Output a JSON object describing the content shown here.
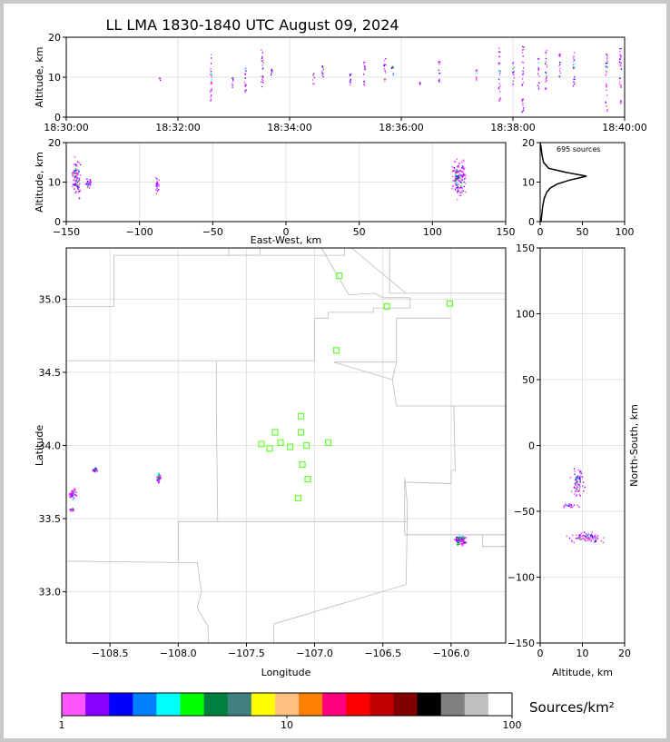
{
  "title": "LL LMA 1830-1840 UTC August 09, 2024",
  "colors": {
    "source_magenta": "#ff33ff",
    "source_violet": "#8000ff",
    "source_blue": "#0000ff",
    "source_cyan": "#00ffff",
    "source_green": "#00c000",
    "station": "#66ff33",
    "county_lines": "#bbbbbb"
  },
  "chart_data": [
    {
      "id": "time_altitude",
      "type": "scatter",
      "ylabel": "Altitude, km",
      "xlim": [
        "18:30:00",
        "18:40:00"
      ],
      "ylim": [
        0,
        20
      ],
      "x_ticks": [
        "18:30:00",
        "18:32:00",
        "18:34:00",
        "18:36:00",
        "18:38:00",
        "18:40:00"
      ],
      "y_ticks": [
        "0",
        "10",
        "20"
      ],
      "grid": true,
      "source_columns": [
        {
          "time": "18:31:40",
          "alt_min": 9,
          "alt_max": 10
        },
        {
          "time": "18:32:35",
          "alt_min": 3,
          "alt_max": 16
        },
        {
          "time": "18:32:58",
          "alt_min": 7,
          "alt_max": 11
        },
        {
          "time": "18:33:12",
          "alt_min": 6,
          "alt_max": 14
        },
        {
          "time": "18:33:30",
          "alt_min": 7,
          "alt_max": 17
        },
        {
          "time": "18:33:40",
          "alt_min": 10,
          "alt_max": 12
        },
        {
          "time": "18:34:25",
          "alt_min": 8,
          "alt_max": 11
        },
        {
          "time": "18:34:35",
          "alt_min": 10,
          "alt_max": 14
        },
        {
          "time": "18:35:05",
          "alt_min": 8,
          "alt_max": 11
        },
        {
          "time": "18:35:20",
          "alt_min": 7,
          "alt_max": 14
        },
        {
          "time": "18:35:42",
          "alt_min": 9,
          "alt_max": 16
        },
        {
          "time": "18:35:50",
          "alt_min": 10,
          "alt_max": 13
        },
        {
          "time": "18:36:20",
          "alt_min": 8,
          "alt_max": 9
        },
        {
          "time": "18:36:40",
          "alt_min": 8,
          "alt_max": 14
        },
        {
          "time": "18:37:20",
          "alt_min": 9,
          "alt_max": 12
        },
        {
          "time": "18:37:45",
          "alt_min": 4,
          "alt_max": 18
        },
        {
          "time": "18:38:00",
          "alt_min": 8,
          "alt_max": 14
        },
        {
          "time": "18:38:10",
          "alt_min": 1,
          "alt_max": 18
        },
        {
          "time": "18:38:27",
          "alt_min": 7,
          "alt_max": 15
        },
        {
          "time": "18:38:35",
          "alt_min": 6,
          "alt_max": 17
        },
        {
          "time": "18:38:50",
          "alt_min": 9,
          "alt_max": 16
        },
        {
          "time": "18:39:05",
          "alt_min": 7,
          "alt_max": 17
        },
        {
          "time": "18:39:40",
          "alt_min": 1,
          "alt_max": 16
        },
        {
          "time": "18:39:55",
          "alt_min": 2,
          "alt_max": 18
        }
      ]
    },
    {
      "id": "eastwest_altitude",
      "type": "scatter",
      "xlabel": "East-West, km",
      "ylabel": "Altitude, km",
      "xlim": [
        -150,
        150
      ],
      "ylim": [
        0,
        20
      ],
      "x_ticks": [
        "−150",
        "−100",
        "−50",
        "0",
        "50",
        "100",
        "150"
      ],
      "y_ticks": [
        "0",
        "10",
        "20"
      ],
      "grid": true,
      "clusters": [
        {
          "x": -143,
          "y": 11,
          "dx": 4,
          "dy": 7
        },
        {
          "x": -135,
          "y": 9.5,
          "dx": 3,
          "dy": 2
        },
        {
          "x": -88,
          "y": 9,
          "dx": 2,
          "dy": 3
        },
        {
          "x": 118,
          "y": 11,
          "dx": 7,
          "dy": 6
        }
      ]
    },
    {
      "id": "altitude_histogram",
      "type": "line",
      "annotation": "695 sources",
      "xlim": [
        0,
        100
      ],
      "ylim": [
        0,
        20
      ],
      "x_ticks": [
        "0",
        "50",
        "100"
      ],
      "y_ticks": [
        "0",
        "10",
        "20"
      ],
      "profile": [
        {
          "alt": 0,
          "count": 1
        },
        {
          "alt": 2,
          "count": 2
        },
        {
          "alt": 4,
          "count": 3
        },
        {
          "alt": 6,
          "count": 5
        },
        {
          "alt": 7.5,
          "count": 8
        },
        {
          "alt": 8.5,
          "count": 12
        },
        {
          "alt": 9.5,
          "count": 20
        },
        {
          "alt": 10.5,
          "count": 35
        },
        {
          "alt": 11.5,
          "count": 55
        },
        {
          "alt": 12.5,
          "count": 30
        },
        {
          "alt": 13.5,
          "count": 10
        },
        {
          "alt": 15,
          "count": 4
        },
        {
          "alt": 17,
          "count": 2
        },
        {
          "alt": 19,
          "count": 1
        },
        {
          "alt": 20,
          "count": 0
        }
      ]
    },
    {
      "id": "plan_view",
      "type": "scatter",
      "xlabel": "Longitude",
      "ylabel": "Latitude",
      "xlim": [
        -108.82,
        -105.6
      ],
      "ylim": [
        32.65,
        35.35
      ],
      "x_ticks": [
        "−108.5",
        "−108.0",
        "−107.5",
        "−107.0",
        "−106.5",
        "−106.0"
      ],
      "y_ticks": [
        "33.0",
        "33.5",
        "34.0",
        "34.5",
        "35.0"
      ],
      "grid": true,
      "stations": [
        {
          "lon": -106.82,
          "lat": 35.16
        },
        {
          "lon": -106.47,
          "lat": 34.95
        },
        {
          "lon": -106.01,
          "lat": 34.97
        },
        {
          "lon": -106.84,
          "lat": 34.65
        },
        {
          "lon": -107.1,
          "lat": 34.2
        },
        {
          "lon": -107.29,
          "lat": 34.09
        },
        {
          "lon": -107.1,
          "lat": 34.09
        },
        {
          "lon": -107.39,
          "lat": 34.01
        },
        {
          "lon": -107.25,
          "lat": 34.02
        },
        {
          "lon": -107.33,
          "lat": 33.98
        },
        {
          "lon": -107.18,
          "lat": 33.99
        },
        {
          "lon": -107.06,
          "lat": 34.0
        },
        {
          "lon": -106.9,
          "lat": 34.02
        },
        {
          "lon": -107.09,
          "lat": 33.87
        },
        {
          "lon": -107.05,
          "lat": 33.77
        },
        {
          "lon": -107.12,
          "lat": 33.64
        }
      ],
      "clusters": [
        {
          "lon": -108.77,
          "lat": 33.67,
          "dlon": 0.03,
          "dlat": 0.05
        },
        {
          "lon": -108.78,
          "lat": 33.56,
          "dlon": 0.02,
          "dlat": 0.01
        },
        {
          "lon": -108.61,
          "lat": 33.83,
          "dlon": 0.02,
          "dlat": 0.02
        },
        {
          "lon": -108.14,
          "lat": 33.78,
          "dlon": 0.02,
          "dlat": 0.04
        },
        {
          "lon": -105.93,
          "lat": 33.35,
          "dlon": 0.06,
          "dlat": 0.05
        }
      ]
    },
    {
      "id": "northsouth_altitude",
      "type": "scatter",
      "xlabel": "Altitude, km",
      "ylabel": "North-South, km",
      "xlim": [
        0,
        20
      ],
      "ylim": [
        -150,
        150
      ],
      "x_ticks": [
        "0",
        "10",
        "20"
      ],
      "y_ticks": [
        "−150",
        "−100",
        "−50",
        "0",
        "50",
        "100",
        "150"
      ],
      "grid": true,
      "clusters": [
        {
          "x": 9,
          "y": -28,
          "dx": 2,
          "dy": 14
        },
        {
          "x": 11,
          "y": -70,
          "dx": 6,
          "dy": 5
        },
        {
          "x": 7,
          "y": -46,
          "dx": 3,
          "dy": 2
        }
      ]
    },
    {
      "id": "colorbar",
      "type": "heatmap",
      "label": "Sources/km²",
      "scale": "log",
      "range": [
        1,
        100
      ],
      "tick_labels": [
        "1",
        "10",
        "100"
      ],
      "color_steps": [
        "#ff55ff",
        "#8800ff",
        "#0000ff",
        "#0080ff",
        "#00ffff",
        "#00ff00",
        "#008040",
        "#408080",
        "#ffff00",
        "#ffc080",
        "#ff8000",
        "#ff0080",
        "#ff0000",
        "#c00000",
        "#800000",
        "#000000",
        "#808080",
        "#c0c0c0",
        "#ffffff"
      ]
    }
  ]
}
